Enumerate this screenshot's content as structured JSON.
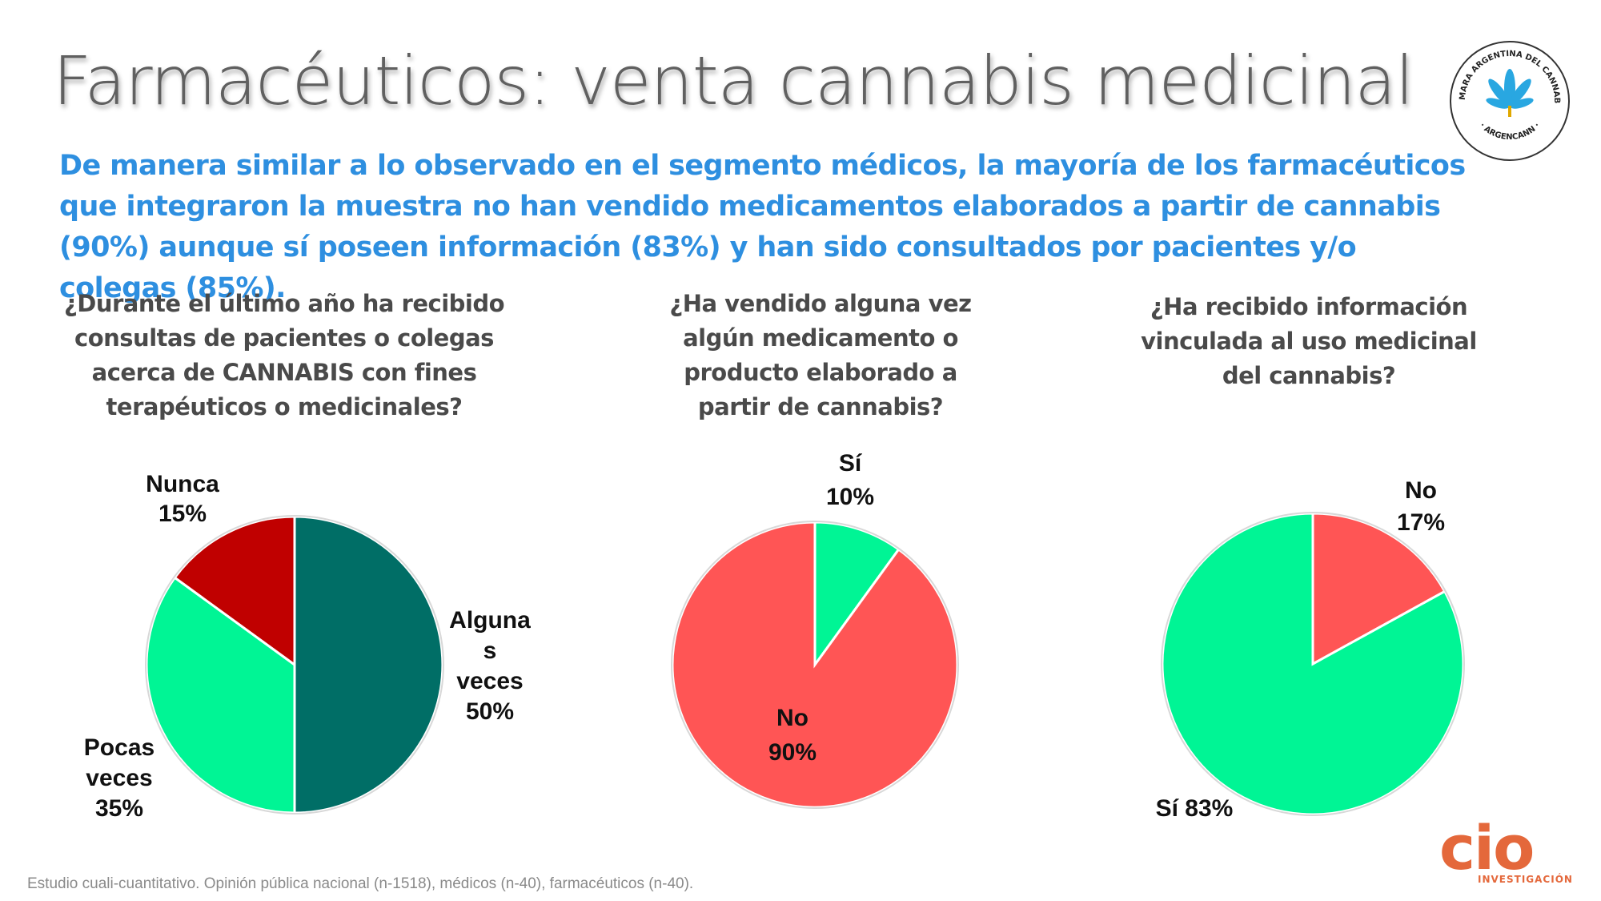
{
  "header": {
    "title": "Farmacéuticos: venta cannabis medicinal",
    "subtitle": "De manera similar a lo observado en el segmento médicos, la mayoría de los farmacéuticos que integraron la muestra no han vendido medicamentos elaborados a partir de cannabis (90%) aunque sí poseen información (83%) y han sido consultados por pacientes y/o colegas (85%)."
  },
  "seal": {
    "text_top": "CAMARA ARGENTINA DEL CANNABIS",
    "text_bottom": "· ARGENCANN ·",
    "icon": "cannabis-leaf-icon"
  },
  "colors": {
    "teal": "#006e66",
    "green": "#00f595",
    "red": "#c00000",
    "salmon": "#ff5555"
  },
  "chart_data": [
    {
      "type": "pie",
      "title": "¿Durante el último año ha recibido consultas de pacientes o colegas acerca de CANNABIS con fines terapéuticos o medicinales?",
      "categories": [
        "Algunas veces",
        "Pocas veces",
        "Nunca"
      ],
      "values": [
        50,
        35,
        15
      ],
      "colors": [
        "#006e66",
        "#00f595",
        "#c00000"
      ],
      "labels": [
        [
          "Alguna",
          "s",
          "veces",
          "50%"
        ],
        [
          "Pocas",
          "veces",
          "35%"
        ],
        [
          "Nunca",
          "15%"
        ]
      ]
    },
    {
      "type": "pie",
      "title": "¿Ha  vendido alguna vez algún medicamento o producto elaborado a partir de cannabis?",
      "categories": [
        "Sí",
        "No"
      ],
      "values": [
        10,
        90
      ],
      "colors": [
        "#00f595",
        "#ff5555"
      ],
      "labels": [
        [
          "Sí",
          "10%"
        ],
        [
          "No",
          "90%"
        ]
      ]
    },
    {
      "type": "pie",
      "title": "¿Ha recibido información vinculada al uso medicinal del cannabis?",
      "categories": [
        "No",
        "Sí"
      ],
      "values": [
        17,
        83
      ],
      "colors": [
        "#ff5555",
        "#00f595"
      ],
      "labels": [
        [
          "No",
          "17%"
        ],
        [
          "Sí 83%"
        ]
      ]
    }
  ],
  "footer": {
    "note": "Estudio cuali-cuantitativo. Opinión pública nacional (n-1518), médicos (n-40), farmacéuticos (n-40)."
  },
  "brand": {
    "name": "cio",
    "tagline": "INVESTIGACIÓN"
  }
}
